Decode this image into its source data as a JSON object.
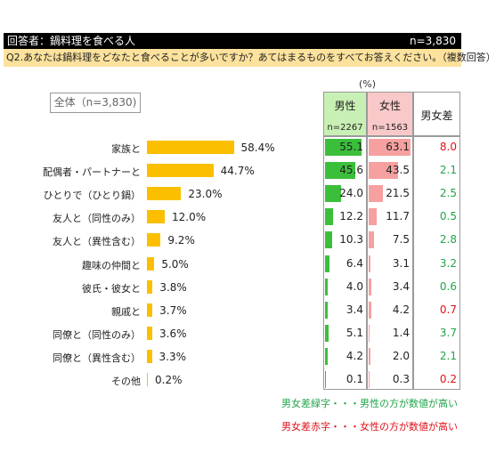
{
  "header": {
    "respondents": "回答者：鍋料理を食べる人",
    "n_total": "n=3,830"
  },
  "question": "Q2.あなたは鍋料理をどなたと食べることが多いですか？あてはまるものをすべてお答えください。（複数回答）",
  "overall_label": "全体（n=3,830)",
  "unit_label": "(%)",
  "table_headers": {
    "male": "男性",
    "male_n": "n=2267",
    "female": "女性",
    "female_n": "n=1563",
    "diff": "男女差"
  },
  "notes": {
    "green": "男女差緑字・・・男性の方が数値が高い",
    "red": "男女差赤字・・・女性の方が数値が高い"
  },
  "colors": {
    "bar": "#fbbf00",
    "male": "#3bbf3b",
    "female": "#f7a0a0",
    "green_text": "#21a54a",
    "red_text": "#e0101a",
    "header_bg": "#000000",
    "question_bg": "#fce29d",
    "male_header": "#c9f0b4",
    "female_header": "#f9c8c8"
  },
  "chart_data": {
    "type": "bar",
    "orientation": "horizontal",
    "categories": [
      "家族と",
      "配偶者・パートナーと",
      "ひとりで（ひとり鍋）",
      "友人と（同性のみ）",
      "友人と（異性含む）",
      "趣味の仲間と",
      "彼氏・彼女と",
      "親戚と",
      "同僚と（同性のみ）",
      "同僚と（異性含む）",
      "その他"
    ],
    "values": [
      58.4,
      44.7,
      23.0,
      12.0,
      9.2,
      5.0,
      3.8,
      3.7,
      3.6,
      3.3,
      0.2
    ],
    "value_labels": [
      "58.4%",
      "44.7%",
      "23.0%",
      "12.0%",
      "9.2%",
      "5.0%",
      "3.8%",
      "3.7%",
      "3.6%",
      "3.3%",
      "0.2%"
    ],
    "series": [
      {
        "name": "男性",
        "values": [
          "55.1",
          "45.6",
          "24.0",
          "12.2",
          "10.3",
          "6.4",
          "4.0",
          "3.4",
          "5.1",
          "4.2",
          "0.1"
        ]
      },
      {
        "name": "女性",
        "values": [
          "63.1",
          "43.5",
          "21.5",
          "11.7",
          "7.5",
          "3.1",
          "3.4",
          "4.2",
          "1.4",
          "2.0",
          "0.3"
        ]
      }
    ],
    "diff": [
      "8.0",
      "2.1",
      "2.5",
      "0.5",
      "2.8",
      "3.2",
      "0.6",
      "0.7",
      "3.7",
      "2.1",
      "0.2"
    ],
    "diff_sign": [
      "red",
      "green",
      "green",
      "green",
      "green",
      "green",
      "green",
      "red",
      "green",
      "green",
      "red"
    ]
  }
}
